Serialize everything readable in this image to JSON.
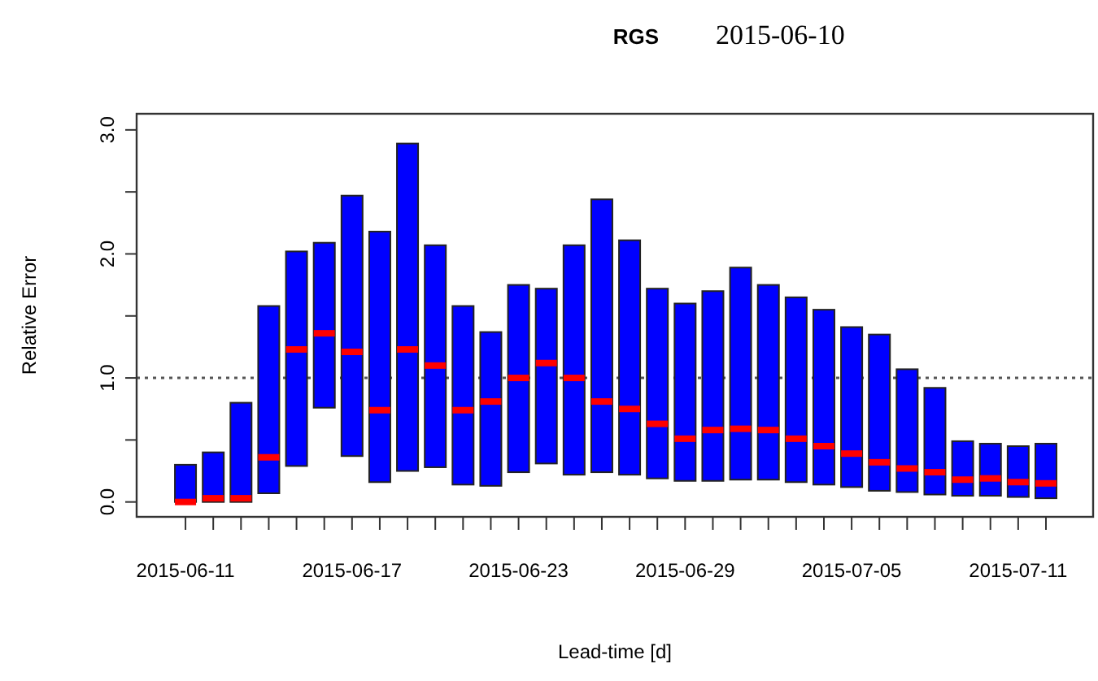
{
  "chart_data": {
    "type": "box",
    "title": "RGS",
    "subtitle": "2015-06-10",
    "xlabel": "Lead-time [d]",
    "ylabel": "Relative Error",
    "categories": [
      "2015-06-11",
      null,
      null,
      null,
      null,
      null,
      "2015-06-17",
      null,
      null,
      null,
      null,
      null,
      "2015-06-23",
      null,
      null,
      null,
      null,
      null,
      "2015-06-29",
      null,
      null,
      null,
      null,
      null,
      "2015-07-05",
      null,
      null,
      null,
      null,
      null,
      "2015-07-11",
      null
    ],
    "color": "#0000ff",
    "ylim": [
      -0.12,
      3.13
    ],
    "yticks": [
      {
        "value": 0,
        "label": "0.0"
      },
      {
        "value": 0.5,
        "label": null
      },
      {
        "value": 1,
        "label": "1.0"
      },
      {
        "value": 1.5,
        "label": null
      },
      {
        "value": 2,
        "label": "2.0"
      },
      {
        "value": 2.5,
        "label": null
      },
      {
        "value": 3,
        "label": "3.0"
      }
    ],
    "ref_lines": [
      {
        "axis": "y",
        "value": 1,
        "label": null,
        "color": "#555555",
        "line_style": "dotted"
      }
    ],
    "boxes": [
      {
        "low": 0,
        "q1": 0,
        "median": 0,
        "q3": 0.3,
        "high": 0.3
      },
      {
        "low": 0,
        "q1": 0,
        "median": 0.03,
        "q3": 0.4,
        "high": 0.4
      },
      {
        "low": 0,
        "q1": 0,
        "median": 0.03,
        "q3": 0.8,
        "high": 0.8
      },
      {
        "low": 0.07,
        "q1": 0.07,
        "median": 0.36,
        "q3": 1.58,
        "high": 1.58
      },
      {
        "low": 0.29,
        "q1": 0.29,
        "median": 1.23,
        "q3": 2.02,
        "high": 2.02
      },
      {
        "low": 0.76,
        "q1": 0.76,
        "median": 1.36,
        "q3": 2.09,
        "high": 2.09
      },
      {
        "low": 0.37,
        "q1": 0.37,
        "median": 1.21,
        "q3": 2.47,
        "high": 2.47
      },
      {
        "low": 0.16,
        "q1": 0.16,
        "median": 0.74,
        "q3": 2.18,
        "high": 2.18
      },
      {
        "low": 0.25,
        "q1": 0.25,
        "median": 1.23,
        "q3": 2.89,
        "high": 2.89
      },
      {
        "low": 0.28,
        "q1": 0.28,
        "median": 1.1,
        "q3": 2.07,
        "high": 2.07
      },
      {
        "low": 0.14,
        "q1": 0.14,
        "median": 0.74,
        "q3": 1.58,
        "high": 1.58
      },
      {
        "low": 0.13,
        "q1": 0.13,
        "median": 0.81,
        "q3": 1.37,
        "high": 1.37
      },
      {
        "low": 0.24,
        "q1": 0.24,
        "median": 1,
        "q3": 1.75,
        "high": 1.75
      },
      {
        "low": 0.31,
        "q1": 0.31,
        "median": 1.12,
        "q3": 1.72,
        "high": 1.72
      },
      {
        "low": 0.22,
        "q1": 0.22,
        "median": 1,
        "q3": 2.07,
        "high": 2.07
      },
      {
        "low": 0.24,
        "q1": 0.24,
        "median": 0.81,
        "q3": 2.44,
        "high": 2.44
      },
      {
        "low": 0.22,
        "q1": 0.22,
        "median": 0.75,
        "q3": 2.11,
        "high": 2.11
      },
      {
        "low": 0.19,
        "q1": 0.19,
        "median": 0.63,
        "q3": 1.72,
        "high": 1.72
      },
      {
        "low": 0.17,
        "q1": 0.17,
        "median": 0.51,
        "q3": 1.6,
        "high": 1.6
      },
      {
        "low": 0.17,
        "q1": 0.17,
        "median": 0.58,
        "q3": 1.7,
        "high": 1.7
      },
      {
        "low": 0.18,
        "q1": 0.18,
        "median": 0.59,
        "q3": 1.89,
        "high": 1.89
      },
      {
        "low": 0.18,
        "q1": 0.18,
        "median": 0.58,
        "q3": 1.75,
        "high": 1.75
      },
      {
        "low": 0.16,
        "q1": 0.16,
        "median": 0.51,
        "q3": 1.65,
        "high": 1.65
      },
      {
        "low": 0.14,
        "q1": 0.14,
        "median": 0.45,
        "q3": 1.55,
        "high": 1.55
      },
      {
        "low": 0.12,
        "q1": 0.12,
        "median": 0.39,
        "q3": 1.41,
        "high": 1.41
      },
      {
        "low": 0.09,
        "q1": 0.09,
        "median": 0.32,
        "q3": 1.35,
        "high": 1.35
      },
      {
        "low": 0.08,
        "q1": 0.08,
        "median": 0.27,
        "q3": 1.07,
        "high": 1.07
      },
      {
        "low": 0.06,
        "q1": 0.06,
        "median": 0.24,
        "q3": 0.92,
        "high": 0.92
      },
      {
        "low": 0.05,
        "q1": 0.05,
        "median": 0.18,
        "q3": 0.49,
        "high": 0.49
      },
      {
        "low": 0.05,
        "q1": 0.05,
        "median": 0.19,
        "q3": 0.47,
        "high": 0.47
      },
      {
        "low": 0.04,
        "q1": 0.04,
        "median": 0.16,
        "q3": 0.45,
        "high": 0.45
      },
      {
        "low": 0.03,
        "q1": 0.03,
        "median": 0.15,
        "q3": 0.47,
        "high": 0.47
      }
    ]
  }
}
